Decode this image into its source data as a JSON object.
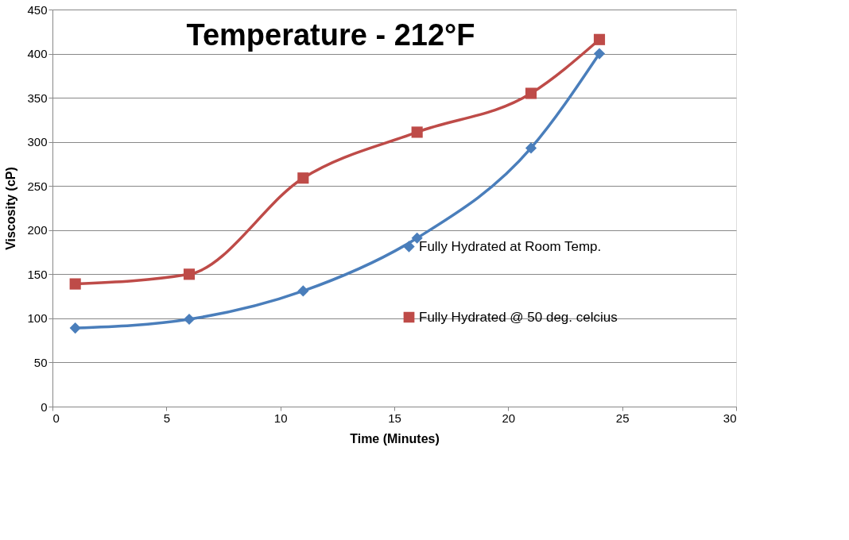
{
  "chart_data": {
    "type": "line",
    "title": "Temperature -  212°F",
    "xlabel": "Time (Minutes)",
    "ylabel": "Viscosity (cP)",
    "x": [
      1,
      6,
      11,
      16,
      21,
      24
    ],
    "series": [
      {
        "name": "Fully Hydrated at Room Temp.",
        "color": "#4a7ebb",
        "marker": "diamond",
        "values": [
          89,
          99,
          131,
          191,
          293,
          400
        ]
      },
      {
        "name": "Fully Hydrated @ 50 deg. celcius",
        "color": "#be4b48",
        "marker": "square",
        "values": [
          139,
          150,
          259,
          311,
          355,
          416
        ]
      }
    ],
    "xlim": [
      0,
      30
    ],
    "xticks": [
      0,
      5,
      10,
      15,
      20,
      25,
      30
    ],
    "ylim": [
      0,
      450
    ],
    "yticks": [
      0,
      50,
      100,
      150,
      200,
      250,
      300,
      350,
      400,
      450
    ],
    "grid": "y",
    "legend": "right",
    "line_style": "solid"
  }
}
